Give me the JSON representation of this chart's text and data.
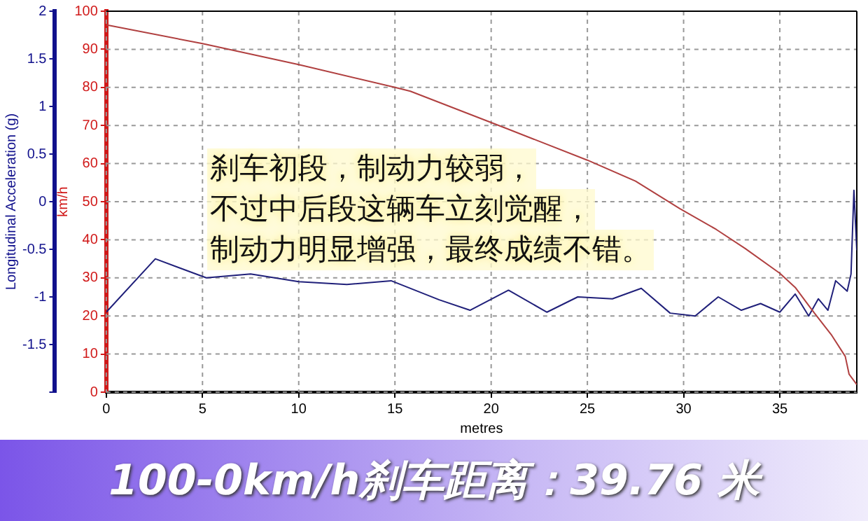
{
  "chart_data": {
    "type": "line",
    "title": "100-0km/h刹车距离：39.76 米",
    "xlabel": "metres",
    "ylabel": "km/h",
    "y2label": "Longitudinal Acceleration (g)",
    "annotations": [
      "刹车初段，制动力较弱，",
      "不过中后段这辆车立刻觉醒，",
      "制动力明显增强，最终成绩不错。"
    ],
    "xlim": [
      0,
      39
    ],
    "xticks": [
      0,
      5,
      10,
      15,
      20,
      25,
      30,
      35
    ],
    "ylim": [
      0,
      100
    ],
    "yticks": [
      0,
      10,
      20,
      30,
      40,
      50,
      60,
      70,
      80,
      90,
      100
    ],
    "y2lim": [
      -2,
      2
    ],
    "y2ticks": [
      {
        "value": -2,
        "label": null
      },
      -1.5,
      -1,
      -0.5,
      0,
      0.5,
      1,
      1.5,
      2
    ],
    "grid": true,
    "legend": false,
    "marker": "none",
    "series": [
      {
        "color": "#b04040",
        "x": [
          0,
          5,
          10,
          15,
          15.8,
          20.8,
          25,
          27.5,
          29.8,
          31.7,
          33.2,
          35,
          35.8,
          36.7,
          37.7,
          38.4,
          38.6,
          39
        ],
        "values": [
          96.4,
          91.5,
          86,
          80,
          79,
          69.2,
          60.9,
          55.4,
          48.2,
          42.7,
          37.7,
          31.2,
          27.5,
          21.4,
          14.9,
          9.4,
          4.7,
          2
        ]
      },
      {
        "color": "#20207a",
        "axis": "y2",
        "x": [
          0,
          2.55,
          5.2,
          7.5,
          10,
          12.5,
          14.8,
          17.3,
          18.9,
          20.9,
          22.9,
          24.5,
          26.3,
          27.8,
          29.3,
          30.6,
          31.8,
          33,
          34,
          35,
          35.8,
          36.5,
          37,
          37.5,
          37.9,
          38.5,
          38.7,
          38.85,
          39
        ],
        "values": [
          -1.16,
          -0.6,
          -0.8,
          -0.76,
          -0.84,
          -0.87,
          -0.83,
          -1.03,
          -1.14,
          -0.93,
          -1.16,
          -1,
          -1.02,
          -0.91,
          -1.17,
          -1.2,
          -1,
          -1.14,
          -1.07,
          -1.16,
          -0.97,
          -1.2,
          -1.02,
          -1.14,
          -0.83,
          -0.94,
          -0.76,
          0.12,
          -0.51
        ]
      }
    ]
  }
}
